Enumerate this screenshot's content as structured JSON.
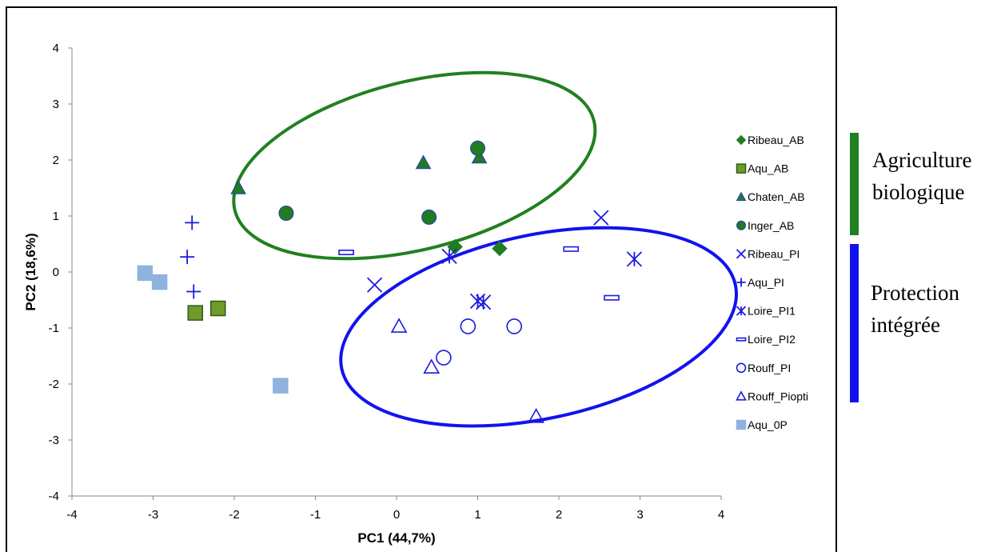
{
  "chart_data": {
    "type": "scatter",
    "title": "",
    "xlabel": "PC1 (44,7%)",
    "ylabel": "PC2 (18,6%)",
    "xlim": [
      -4,
      4
    ],
    "ylim": [
      -4,
      4
    ],
    "x_ticks": [
      "-4",
      "-3",
      "-2",
      "-1",
      "0",
      "1",
      "2",
      "3",
      "4"
    ],
    "y_ticks": [
      "4",
      "3",
      "2",
      "1",
      "0",
      "-1",
      "-2",
      "-3",
      "-4"
    ],
    "grid": false,
    "legend_position": "right",
    "series": [
      {
        "name": "Ribeau_AB",
        "marker": "diamond",
        "fill": "#217c21",
        "stroke": "#217c21",
        "points": [
          [
            0.72,
            0.45
          ],
          [
            1.27,
            0.42
          ]
        ]
      },
      {
        "name": "Aqu_AB",
        "marker": "square",
        "fill": "#6f9a2c",
        "stroke": "#2f5b16",
        "points": [
          [
            -2.48,
            -0.73
          ],
          [
            -2.2,
            -0.65
          ]
        ]
      },
      {
        "name": "Chaten_AB",
        "marker": "triangle",
        "fill": "#217c21",
        "stroke": "#2b3bc0",
        "points": [
          [
            -1.95,
            1.5
          ],
          [
            0.33,
            1.95
          ],
          [
            1.02,
            2.05
          ]
        ]
      },
      {
        "name": "Inger_AB",
        "marker": "circle",
        "fill": "#217c21",
        "stroke": "#2b3bc0",
        "points": [
          [
            -1.36,
            1.05
          ],
          [
            0.4,
            0.98
          ],
          [
            1.0,
            2.21
          ]
        ]
      },
      {
        "name": "Ribeau_PI",
        "marker": "x",
        "fill": "none",
        "stroke": "#1a1adf",
        "points": [
          [
            -0.27,
            -0.23
          ],
          [
            2.52,
            0.97
          ]
        ]
      },
      {
        "name": "Aqu_PI",
        "marker": "plus",
        "fill": "none",
        "stroke": "#1a1adf",
        "points": [
          [
            -2.52,
            0.88
          ],
          [
            -2.58,
            0.27
          ],
          [
            -2.5,
            -0.35
          ]
        ]
      },
      {
        "name": "Loire_PI1",
        "marker": "asterisk",
        "fill": "none",
        "stroke": "#1a1adf",
        "points": [
          [
            0.65,
            0.28
          ],
          [
            1.0,
            -0.52
          ],
          [
            1.07,
            -0.54
          ],
          [
            2.93,
            0.23
          ]
        ]
      },
      {
        "name": "Loire_PI2",
        "marker": "dash",
        "fill": "none",
        "stroke": "#1a1adf",
        "points": [
          [
            -0.62,
            0.35
          ],
          [
            2.15,
            0.41
          ],
          [
            2.65,
            -0.46
          ]
        ]
      },
      {
        "name": "Rouff_PI",
        "marker": "circle-open",
        "fill": "none",
        "stroke": "#1a1adf",
        "points": [
          [
            0.88,
            -0.97
          ],
          [
            1.45,
            -0.97
          ],
          [
            0.58,
            -1.53
          ]
        ]
      },
      {
        "name": "Rouff_Piopti",
        "marker": "triangle-open",
        "fill": "none",
        "stroke": "#1a1adf",
        "points": [
          [
            0.03,
            -0.97
          ],
          [
            0.43,
            -1.7
          ],
          [
            1.72,
            -2.58
          ]
        ]
      },
      {
        "name": "Aqu_0P",
        "marker": "square",
        "fill": "#8fb3e0",
        "stroke": "#8fb3e0",
        "points": [
          [
            -3.1,
            -0.02
          ],
          [
            -2.92,
            -0.18
          ],
          [
            -1.43,
            -2.03
          ]
        ]
      }
    ],
    "ellipses": [
      {
        "group": "Agriculture biologique",
        "color": "#21801f",
        "center": [
          0.22,
          1.9
        ],
        "rx": 2.28,
        "ry": 1.5,
        "rotation_deg": -14
      },
      {
        "group": "Protection intégrée",
        "color": "#1212ee",
        "center": [
          1.75,
          -0.98
        ],
        "rx": 2.48,
        "ry": 1.64,
        "rotation_deg": -12
      }
    ]
  },
  "groups": [
    {
      "line1": "Agriculture",
      "line2": "biologique",
      "color": "#21801f"
    },
    {
      "line1": "Protection",
      "line2": "intégrée",
      "color": "#1212ee"
    }
  ]
}
